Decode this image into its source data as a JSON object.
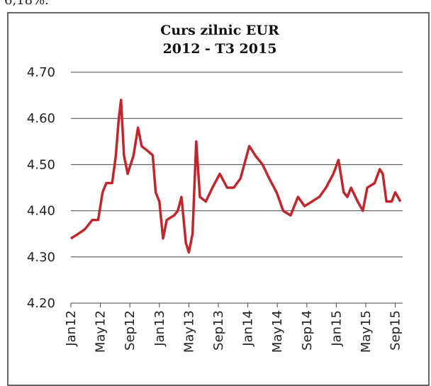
{
  "page_note": "6,18%.",
  "chart_data": {
    "type": "line",
    "title": "Curs zilnic EUR",
    "subtitle": "2012 - T3 2015",
    "x": [
      0,
      1,
      1.9,
      2.9,
      3.7,
      4.3,
      4.8,
      5.6,
      6.1,
      6.5,
      6.8,
      7.2,
      7.7,
      8.5,
      9.1,
      9.6,
      10.4,
      11.1,
      11.5,
      12,
      12.5,
      13,
      14,
      14.5,
      15,
      15.6,
      16,
      16.5,
      17,
      17.5,
      18.3,
      19.2,
      20.2,
      21.2,
      22.1,
      23,
      24.2,
      25,
      26,
      26.9,
      27.9,
      28.8,
      29.8,
      30.8,
      31.7,
      32.7,
      33.7,
      34.6,
      35.6,
      36.3,
      37,
      37.5,
      38,
      38.9,
      39.6,
      40.2,
      41.2,
      41.9,
      42.3,
      42.8,
      43.5,
      44,
      44.7
    ],
    "series": [
      {
        "name": "EUR",
        "color": "#c0262c",
        "values": [
          4.34,
          4.35,
          4.36,
          4.38,
          4.38,
          4.44,
          4.46,
          4.46,
          4.52,
          4.6,
          4.64,
          4.52,
          4.48,
          4.52,
          4.58,
          4.54,
          4.53,
          4.52,
          4.44,
          4.42,
          4.34,
          4.38,
          4.39,
          4.4,
          4.43,
          4.33,
          4.31,
          4.35,
          4.55,
          4.43,
          4.42,
          4.45,
          4.48,
          4.45,
          4.45,
          4.47,
          4.54,
          4.52,
          4.5,
          4.47,
          4.44,
          4.4,
          4.39,
          4.43,
          4.41,
          4.42,
          4.43,
          4.45,
          4.48,
          4.51,
          4.44,
          4.43,
          4.45,
          4.42,
          4.4,
          4.45,
          4.46,
          4.49,
          4.48,
          4.42,
          4.42,
          4.44,
          4.42
        ]
      }
    ],
    "xlim": [
      0,
      45
    ],
    "xticks": [
      {
        "value": 0,
        "label": "Jan12"
      },
      {
        "value": 4,
        "label": "May12"
      },
      {
        "value": 8,
        "label": "Sep12"
      },
      {
        "value": 12,
        "label": "Jan13"
      },
      {
        "value": 16,
        "label": "May13"
      },
      {
        "value": 20,
        "label": "Sep13"
      },
      {
        "value": 24,
        "label": "Jan14"
      },
      {
        "value": 28,
        "label": "May14"
      },
      {
        "value": 32,
        "label": "Sep14"
      },
      {
        "value": 36,
        "label": "Jan15"
      },
      {
        "value": 40,
        "label": "May15"
      },
      {
        "value": 44,
        "label": "Sep15"
      }
    ],
    "ylim": [
      4.2,
      4.7
    ],
    "yticks": [
      {
        "value": 4.2,
        "label": "4.20"
      },
      {
        "value": 4.3,
        "label": "4.30"
      },
      {
        "value": 4.4,
        "label": "4.40"
      },
      {
        "value": 4.5,
        "label": "4.50"
      },
      {
        "value": 4.6,
        "label": "4.60"
      },
      {
        "value": 4.7,
        "label": "4.70"
      }
    ],
    "grid": true
  }
}
